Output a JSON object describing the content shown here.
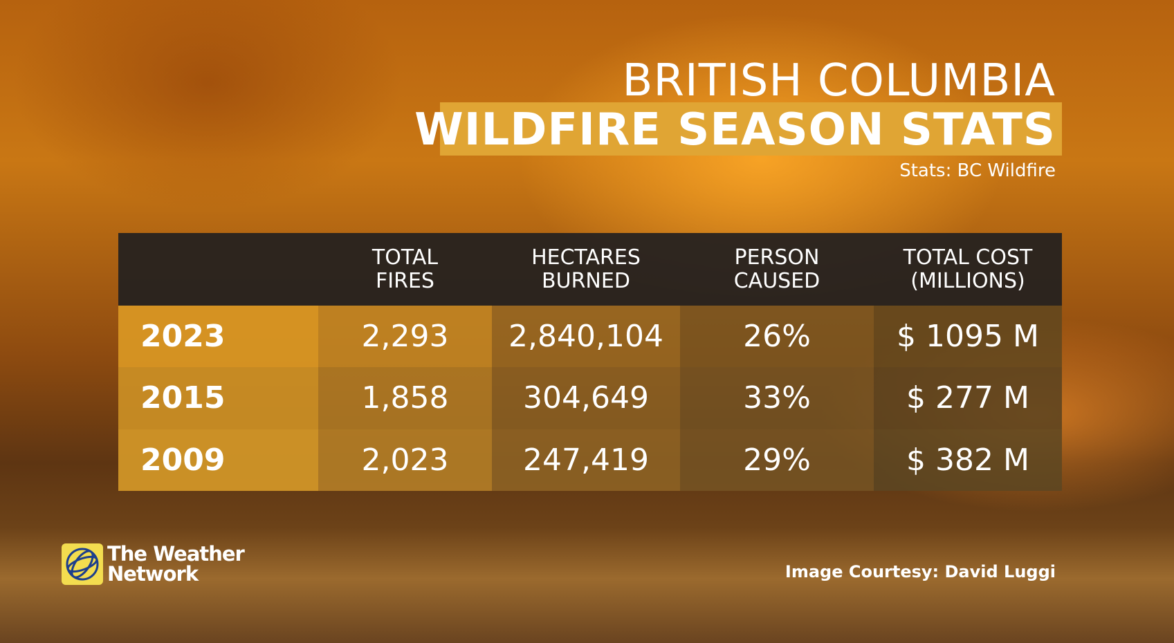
{
  "header": {
    "title_line1": "BRITISH COLUMBIA",
    "title_line2": "WILDFIRE SEASON STATS",
    "source": "Stats: BC Wildfire"
  },
  "table": {
    "columns": [
      [
        "TOTAL",
        "FIRES"
      ],
      [
        "HECTARES",
        "BURNED"
      ],
      [
        "PERSON",
        "CAUSED"
      ],
      [
        "TOTAL COST",
        "(MILLIONS)"
      ]
    ],
    "rows": [
      [
        "2023",
        "2,293",
        "2,840,104",
        "26%",
        "$ 1095 M"
      ],
      [
        "2015",
        "1,858",
        "304,649",
        "33%",
        "$ 277 M"
      ],
      [
        "2009",
        "2,023",
        "247,419",
        "29%",
        "$ 382 M"
      ]
    ]
  },
  "logo": {
    "lines": [
      "The Weather",
      "Network"
    ]
  },
  "credit": "Image Courtesy: David Luggi"
}
